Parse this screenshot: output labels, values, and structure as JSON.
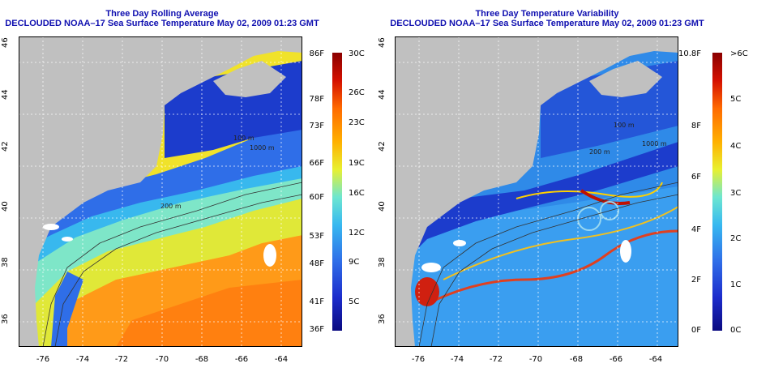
{
  "left_panel": {
    "title_line1": "Three Day Rolling Average",
    "title_line2": "DECLOUDED NOAA–17 Sea Surface Temperature May 02, 2009 01:23 GMT",
    "colorbar_f": [
      "86F",
      "78F",
      "73F",
      "66F",
      "60F",
      "53F",
      "48F",
      "41F",
      "36F"
    ],
    "colorbar_c": [
      "30C",
      "26C",
      "23C",
      "19C",
      "16C",
      "12C",
      "9C",
      "5C"
    ],
    "contour_labels": [
      "100 m",
      "1000 m",
      "200 m"
    ]
  },
  "right_panel": {
    "title_line1": "Three Day Temperature Variability",
    "title_line2": "DECLOUDED NOAA–17 Sea Surface Temperature May 02, 2009 01:23 GMT",
    "colorbar_f": [
      "10.8F",
      "8F",
      "6F",
      "4F",
      "2F",
      "0F"
    ],
    "colorbar_c": [
      ">6C",
      "5C",
      "4C",
      "3C",
      "2C",
      "1C",
      "0C"
    ],
    "contour_labels": [
      "100 m",
      "1000 m",
      "200 m"
    ]
  },
  "axes": {
    "lat_ticks": [
      "46",
      "44",
      "42",
      "40",
      "38",
      "36"
    ],
    "lon_ticks": [
      "-76",
      "-74",
      "-72",
      "-70",
      "-68",
      "-66",
      "-64"
    ]
  },
  "colors": {
    "title": "#1010b0",
    "land": "#c0c0c0",
    "sst_scale": [
      "#0a0a80",
      "#1c2ccc",
      "#2f6ee8",
      "#37b8f0",
      "#6de6d0",
      "#f0f020",
      "#ffb000",
      "#ff6a00",
      "#d41000",
      "#8a0000"
    ]
  }
}
